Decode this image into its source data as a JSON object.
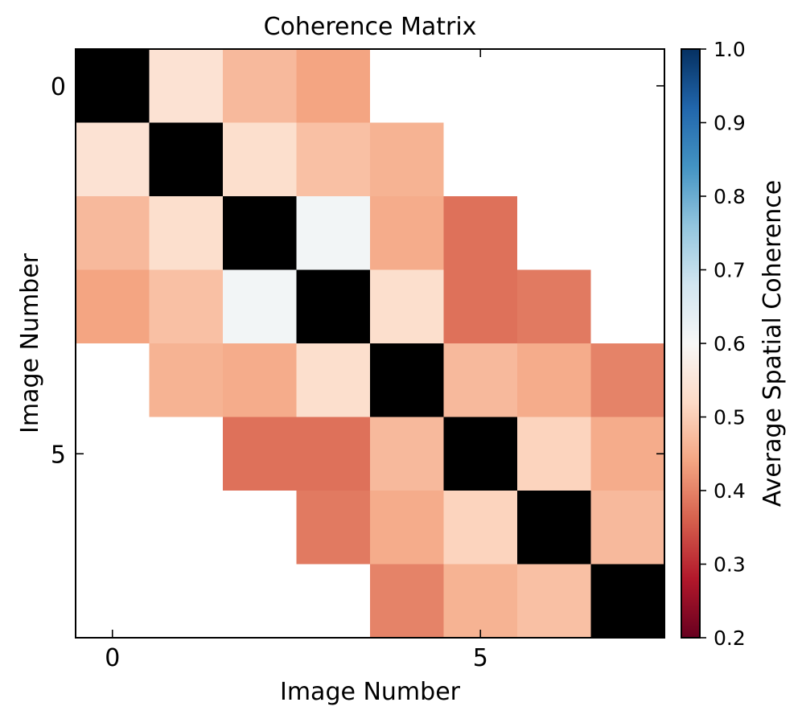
{
  "chart_data": {
    "type": "heatmap",
    "title": "Coherence Matrix",
    "xlabel": "Image Number",
    "ylabel": "Image Number",
    "x_ticks": [
      0,
      5
    ],
    "y_ticks": [
      0,
      5
    ],
    "rows": 8,
    "cols": 8,
    "diagonal_color": "#000000",
    "missing_color": "#ffffff",
    "values": [
      [
        null,
        0.54,
        0.47,
        0.44,
        null,
        null,
        null,
        null
      ],
      [
        0.54,
        null,
        0.53,
        0.48,
        0.46,
        null,
        null,
        null
      ],
      [
        0.47,
        0.53,
        null,
        0.61,
        0.45,
        0.38,
        null,
        null
      ],
      [
        0.44,
        0.48,
        0.61,
        null,
        0.53,
        0.38,
        0.39,
        null
      ],
      [
        null,
        0.46,
        0.45,
        0.53,
        null,
        0.47,
        0.45,
        0.4
      ],
      [
        null,
        null,
        0.38,
        0.38,
        0.47,
        null,
        0.51,
        0.45
      ],
      [
        null,
        null,
        null,
        0.39,
        0.45,
        0.51,
        null,
        0.47
      ],
      [
        null,
        null,
        null,
        null,
        0.4,
        0.46,
        0.48,
        null
      ]
    ],
    "colorbar": {
      "label": "Average Spatial Coherence",
      "vmin": 0.2,
      "vmax": 1.0,
      "ticks": [
        "0.2",
        "0.3",
        "0.4",
        "0.5",
        "0.6",
        "0.7",
        "0.8",
        "0.9",
        "1.0"
      ],
      "colormap": "RdBu",
      "stops": [
        "#67001f",
        "#b2182b",
        "#d6604d",
        "#f4a582",
        "#fddbc7",
        "#f7f7f7",
        "#d1e5f0",
        "#92c5de",
        "#4393c3",
        "#2166ac",
        "#053061"
      ]
    }
  }
}
